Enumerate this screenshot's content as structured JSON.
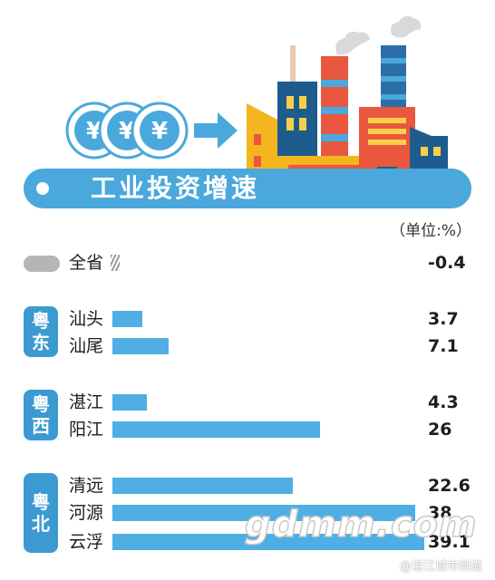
{
  "header": {
    "title": "工业投资增速",
    "unit": "（单位:%）"
  },
  "colors": {
    "banner": "#4aa8dc",
    "bar": "#4faee3",
    "badge": "#3c9ad2",
    "province_marker": "#b5b5b5"
  },
  "chart_data": {
    "type": "bar",
    "orientation": "horizontal",
    "title": "工业投资增速",
    "unit": "（单位:%）",
    "categories": [
      "全省",
      "汕头",
      "汕尾",
      "湛江",
      "阳江",
      "清远",
      "河源",
      "云浮"
    ],
    "values": [
      -0.4,
      3.7,
      7.1,
      4.3,
      26,
      22.6,
      38,
      39.1
    ],
    "value_labels": [
      "-0.4",
      "3.7",
      "7.1",
      "4.3",
      "26",
      "22.6",
      "38",
      "39.1"
    ],
    "groups": [
      {
        "name": "粤东",
        "members": [
          "汕头",
          "汕尾"
        ]
      },
      {
        "name": "粤西",
        "members": [
          "湛江",
          "阳江"
        ]
      },
      {
        "name": "粤北",
        "members": [
          "清远",
          "河源",
          "云浮"
        ]
      }
    ]
  },
  "watermark": {
    "text": "gdmm.com",
    "weibo": "@湛江城市频道"
  }
}
